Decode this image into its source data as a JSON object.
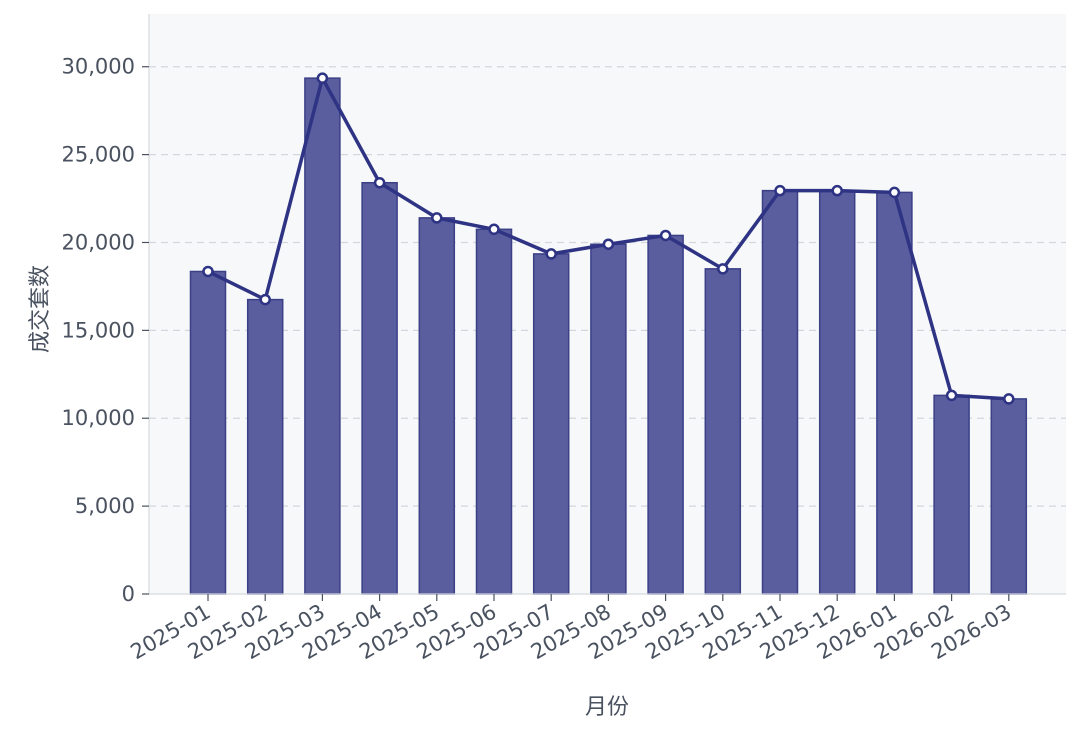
{
  "chart_data": {
    "type": "bar",
    "categories": [
      "2025-01",
      "2025-02",
      "2025-03",
      "2025-04",
      "2025-05",
      "2025-06",
      "2025-07",
      "2025-08",
      "2025-09",
      "2025-10",
      "2025-11",
      "2025-12",
      "2026-01",
      "2026-02",
      "2026-03"
    ],
    "series": [
      {
        "type": "bar",
        "values": [
          18350,
          16750,
          29350,
          23400,
          21400,
          20750,
          19350,
          19900,
          20400,
          18500,
          22950,
          22950,
          22850,
          11300,
          11100
        ],
        "color": "#5a5e9e"
      },
      {
        "type": "line",
        "values": [
          18350,
          16750,
          29350,
          23400,
          21400,
          20750,
          19350,
          19900,
          20400,
          18500,
          22950,
          22950,
          22850,
          11300,
          11100
        ],
        "color": "#2e3383"
      }
    ],
    "xlabel": "月份",
    "ylabel": "成交套数",
    "ylim": [
      0,
      33000
    ],
    "yticks": [
      0,
      5000,
      10000,
      15000,
      20000,
      25000,
      30000
    ],
    "ytick_labels": [
      "0",
      "5,000",
      "10,000",
      "15,000",
      "20,000",
      "25,000",
      "30,000"
    ],
    "grid": true,
    "grid_style": "dashed-horizontal",
    "background": "#f6f8fa"
  }
}
